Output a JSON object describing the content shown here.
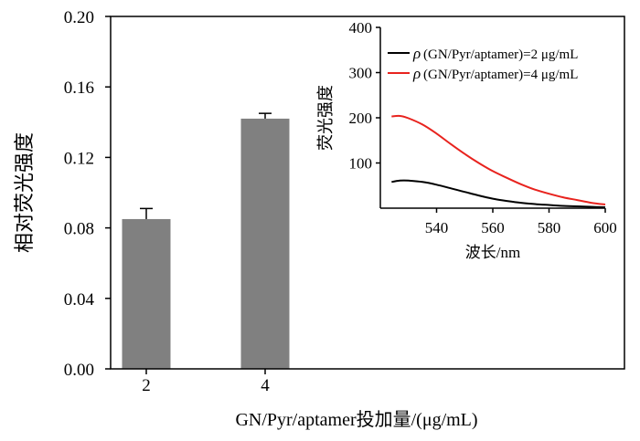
{
  "chart_data": [
    {
      "type": "bar",
      "title": "",
      "xlabel": "GN/Pyr/aptamer投加量/(μg/mL)",
      "ylabel": "相对荧光强度",
      "categories": [
        "2",
        "4"
      ],
      "values": [
        0.085,
        0.142
      ],
      "errors": [
        0.006,
        0.003
      ],
      "ylim": [
        0,
        0.2
      ],
      "yticks": [
        "0.00",
        "0.04",
        "0.08",
        "0.12",
        "0.16",
        "0.20"
      ],
      "bar_color": "#808080",
      "grid": false
    },
    {
      "type": "line",
      "title": "",
      "xlabel": "波长/nm",
      "ylabel": "荧光强度",
      "xlim": [
        520,
        600
      ],
      "ylim": [
        0,
        400
      ],
      "xticks": [
        "540",
        "560",
        "580",
        "600"
      ],
      "yticks": [
        "100",
        "200",
        "300",
        "400"
      ],
      "legend_position": "top-right",
      "series": [
        {
          "name": "ρ(GN/Pyr/aptamer)=2 μg/mL",
          "legend_symbol": "ρ",
          "legend_text": "(GN/Pyr/aptamer)=2 μg/mL",
          "color": "#000000",
          "x": [
            524,
            527,
            530,
            535,
            540,
            545,
            550,
            555,
            560,
            565,
            570,
            575,
            580,
            585,
            590,
            595,
            600
          ],
          "y": [
            58,
            61,
            61,
            58,
            52,
            44,
            36,
            28,
            21,
            16,
            12,
            9,
            7,
            5,
            4,
            3,
            2
          ]
        },
        {
          "name": "ρ(GN/Pyr/aptamer)=4 μg/mL",
          "legend_symbol": "ρ",
          "legend_text": "(GN/Pyr/aptamer)=4 μg/mL",
          "color": "#e8231e",
          "x": [
            524,
            527,
            530,
            535,
            540,
            545,
            550,
            555,
            560,
            565,
            570,
            575,
            580,
            585,
            590,
            595,
            600
          ],
          "y": [
            203,
            204,
            199,
            185,
            165,
            142,
            120,
            100,
            82,
            67,
            53,
            41,
            32,
            24,
            18,
            12,
            8
          ]
        }
      ]
    }
  ]
}
